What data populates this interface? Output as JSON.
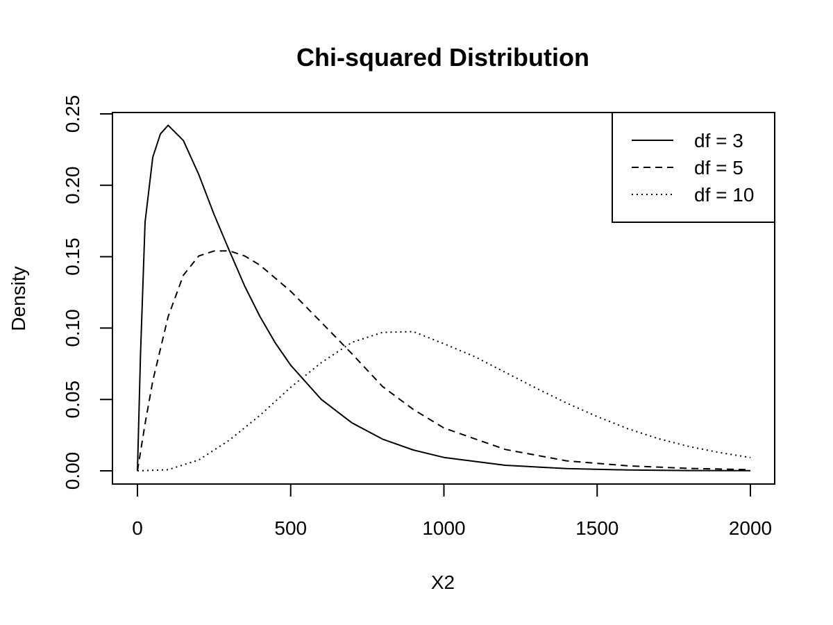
{
  "chart_data": {
    "type": "line",
    "title": "Chi-squared Distribution",
    "xlabel": "X2",
    "ylabel": "Density",
    "xlim": [
      0,
      2000
    ],
    "ylim": [
      0,
      0.25
    ],
    "x_ticks": [
      0,
      500,
      1000,
      1500,
      2000
    ],
    "x_tick_labels": [
      "0",
      "500",
      "1000",
      "1500",
      "2000"
    ],
    "y_ticks": [
      0,
      0.05,
      0.1,
      0.15,
      0.2,
      0.25
    ],
    "y_tick_labels": [
      "0.00",
      "0.05",
      "0.10",
      "0.15",
      "0.20",
      "0.25"
    ],
    "grid": false,
    "legend_position": "top-right",
    "series": [
      {
        "name": "df = 3",
        "line_style": "solid",
        "x": [
          0,
          10,
          25,
          50,
          75,
          100,
          150,
          200,
          250,
          300,
          350,
          400,
          450,
          500,
          600,
          700,
          800,
          900,
          1000,
          1200,
          1400,
          1600,
          1800,
          2000
        ],
        "y": [
          0,
          0.0813,
          0.1743,
          0.2197,
          0.236,
          0.242,
          0.2313,
          0.2076,
          0.1795,
          0.1542,
          0.1294,
          0.108,
          0.0895,
          0.074,
          0.05,
          0.0336,
          0.0222,
          0.0146,
          0.0094,
          0.0039,
          0.0016,
          0.0006,
          0.0002,
          0.0001
        ]
      },
      {
        "name": "df = 5",
        "line_style": "dashed",
        "x": [
          0,
          25,
          50,
          100,
          150,
          200,
          250,
          300,
          350,
          400,
          500,
          600,
          700,
          800,
          900,
          1000,
          1200,
          1400,
          1600,
          1800,
          2000
        ],
        "y": [
          0,
          0.033,
          0.063,
          0.108,
          0.137,
          0.1505,
          0.154,
          0.1541,
          0.1505,
          0.144,
          0.1258,
          0.104,
          0.082,
          0.059,
          0.043,
          0.03,
          0.015,
          0.007,
          0.0035,
          0.0017,
          0.0008
        ]
      },
      {
        "name": "df = 10",
        "line_style": "dotted",
        "x": [
          0,
          100,
          200,
          300,
          400,
          500,
          600,
          700,
          800,
          900,
          1000,
          1100,
          1200,
          1300,
          1400,
          1500,
          1600,
          1700,
          1800,
          1900,
          2000
        ],
        "y": [
          0,
          0.0008,
          0.0076,
          0.0215,
          0.0389,
          0.0585,
          0.0758,
          0.09,
          0.097,
          0.0975,
          0.089,
          0.08,
          0.069,
          0.058,
          0.0475,
          0.038,
          0.0295,
          0.0225,
          0.017,
          0.0128,
          0.0093
        ]
      }
    ]
  }
}
